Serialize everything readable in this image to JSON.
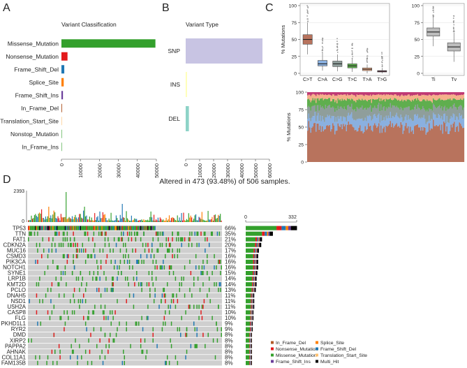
{
  "panels": {
    "A": "A",
    "B": "B",
    "C": "C",
    "D": "D"
  },
  "colors": {
    "missense": "#33a02c",
    "nonsense": "#e31a1c",
    "frame_shift_del": "#1f78b4",
    "splice_site": "#ff7f00",
    "frame_shift_ins": "#6a3d9a",
    "in_frame_del": "#b15928",
    "translation_start_site": "#fdbf6f",
    "multi_hit": "#000000",
    "snp": "#c8c4e3",
    "ins": "#ffffb3",
    "del": "#8dd3c7",
    "CtoT": "#b8735d",
    "CtoA": "#8ab0e0",
    "CtoG": "#8f9e9b",
    "TtoC": "#5fae4e",
    "TtoA": "#f5b08a",
    "TtoG": "#c03a74",
    "box_gray": "#bdbdbd"
  },
  "chart_data": [
    {
      "type": "bar",
      "orientation": "horizontal",
      "title": "Variant Classification",
      "categories": [
        "Missense_Mutation",
        "Nonsense_Mutation",
        "Frame_Shift_Del",
        "Splice_Site",
        "Frame_Shift_Ins",
        "In_Frame_Del",
        "Translation_Start_Site",
        "Nonstop_Mutation",
        "In_Frame_Ins"
      ],
      "values": [
        49500,
        3200,
        1500,
        1200,
        800,
        350,
        120,
        40,
        30
      ],
      "xlim": [
        0,
        50000
      ],
      "xticks": [
        "0",
        "10000",
        "20000",
        "30000",
        "40000",
        "50000"
      ]
    },
    {
      "type": "bar",
      "orientation": "horizontal",
      "title": "Variant Type",
      "categories": [
        "SNP",
        "INS",
        "DEL"
      ],
      "values": [
        55000,
        900,
        2300
      ],
      "xlim": [
        0,
        60000
      ],
      "xticks": [
        "0",
        "10000",
        "20000",
        "30000",
        "40000",
        "50000",
        "60000"
      ]
    },
    {
      "type": "box",
      "ylabel": "% Mutations",
      "categories": [
        "C>T",
        "C>A",
        "C>G",
        "T>C",
        "T>A",
        "T>G"
      ],
      "boxes": [
        {
          "name": "C>T",
          "q1": 43,
          "median": 50,
          "q3": 57,
          "wlow": 28,
          "whigh": 75
        },
        {
          "name": "C>A",
          "q1": 11,
          "median": 14,
          "q3": 19,
          "wlow": 4,
          "whigh": 30
        },
        {
          "name": "C>G",
          "q1": 10,
          "median": 14,
          "q3": 18,
          "wlow": 3,
          "whigh": 28
        },
        {
          "name": "T>C",
          "q1": 8,
          "median": 11,
          "q3": 14,
          "wlow": 2,
          "whigh": 22
        },
        {
          "name": "T>A",
          "q1": 4,
          "median": 6,
          "q3": 8,
          "wlow": 0,
          "whigh": 13
        },
        {
          "name": "T>G",
          "q1": 2,
          "median": 3,
          "q3": 4,
          "wlow": 0,
          "whigh": 8
        }
      ],
      "ylim": [
        0,
        100
      ],
      "yticks": [
        "0",
        "25",
        "50",
        "75",
        "100"
      ]
    },
    {
      "type": "box",
      "categories": [
        "Ti",
        "Tv"
      ],
      "boxes": [
        {
          "name": "Ti",
          "q1": 55,
          "median": 61,
          "q3": 67,
          "wlow": 40,
          "whigh": 83
        },
        {
          "name": "Tv",
          "q1": 33,
          "median": 39,
          "q3": 45,
          "wlow": 17,
          "whigh": 60
        }
      ],
      "ylim": [
        0,
        100
      ],
      "yticks": [
        "0",
        "25",
        "50",
        "75",
        "100"
      ]
    },
    {
      "type": "bar",
      "stacked": true,
      "ylabel": "% Mutations",
      "samples": 506,
      "mean_fractions": {
        "C>T": 0.5,
        "C>A": 0.14,
        "C>G": 0.14,
        "T>C": 0.11,
        "T>A": 0.07,
        "T>G": 0.04
      },
      "ylim": [
        0,
        100
      ],
      "yticks": [
        "0",
        "25",
        "50",
        "75",
        "100"
      ]
    },
    {
      "type": "heatmap",
      "title": "Altered in 473 (93.48%) of 506 samples.",
      "tmb_max_label": "2393",
      "tmb_min_label": "0",
      "side_axis_labels": [
        "0",
        "332"
      ],
      "samples": 506,
      "genes": [
        {
          "name": "TP53",
          "pct": "66%",
          "fraction": 0.66
        },
        {
          "name": "TTN",
          "pct": "35%",
          "fraction": 0.35
        },
        {
          "name": "FAT1",
          "pct": "21%",
          "fraction": 0.21
        },
        {
          "name": "CDKN2A",
          "pct": "20%",
          "fraction": 0.2
        },
        {
          "name": "MUC16",
          "pct": "17%",
          "fraction": 0.17
        },
        {
          "name": "CSMD3",
          "pct": "16%",
          "fraction": 0.16
        },
        {
          "name": "PIK3CA",
          "pct": "16%",
          "fraction": 0.16
        },
        {
          "name": "NOTCH1",
          "pct": "16%",
          "fraction": 0.16
        },
        {
          "name": "SYNE1",
          "pct": "15%",
          "fraction": 0.15
        },
        {
          "name": "LRP1B",
          "pct": "14%",
          "fraction": 0.14
        },
        {
          "name": "KMT2D",
          "pct": "14%",
          "fraction": 0.14
        },
        {
          "name": "PCLO",
          "pct": "13%",
          "fraction": 0.13
        },
        {
          "name": "DNAH5",
          "pct": "11%",
          "fraction": 0.11
        },
        {
          "name": "NSD1",
          "pct": "11%",
          "fraction": 0.11
        },
        {
          "name": "USH2A",
          "pct": "11%",
          "fraction": 0.11
        },
        {
          "name": "CASP8",
          "pct": "10%",
          "fraction": 0.1
        },
        {
          "name": "FLG",
          "pct": "10%",
          "fraction": 0.1
        },
        {
          "name": "PKHD1L1",
          "pct": "9%",
          "fraction": 0.09
        },
        {
          "name": "RYR2",
          "pct": "9%",
          "fraction": 0.09
        },
        {
          "name": "DMD",
          "pct": "8%",
          "fraction": 0.08
        },
        {
          "name": "XIRP2",
          "pct": "8%",
          "fraction": 0.08
        },
        {
          "name": "PAPPA2",
          "pct": "8%",
          "fraction": 0.08
        },
        {
          "name": "AHNAK",
          "pct": "8%",
          "fraction": 0.08
        },
        {
          "name": "COL11A1",
          "pct": "8%",
          "fraction": 0.08
        },
        {
          "name": "FAM135B",
          "pct": "8%",
          "fraction": 0.08
        }
      ],
      "legend": [
        {
          "label": "In_Frame_Del",
          "color_key": "in_frame_del"
        },
        {
          "label": "Splice_Site",
          "color_key": "splice_site"
        },
        {
          "label": "Nonsense_Mutation",
          "color_key": "nonsense"
        },
        {
          "label": "Frame_Shift_Del",
          "color_key": "frame_shift_del"
        },
        {
          "label": "Missense_Mutation",
          "color_key": "missense"
        },
        {
          "label": "Translation_Start_Site",
          "color_key": "translation_start_site"
        },
        {
          "label": "Frame_Shift_Ins",
          "color_key": "frame_shift_ins"
        },
        {
          "label": "Multi_Hit",
          "color_key": "multi_hit"
        }
      ]
    }
  ]
}
